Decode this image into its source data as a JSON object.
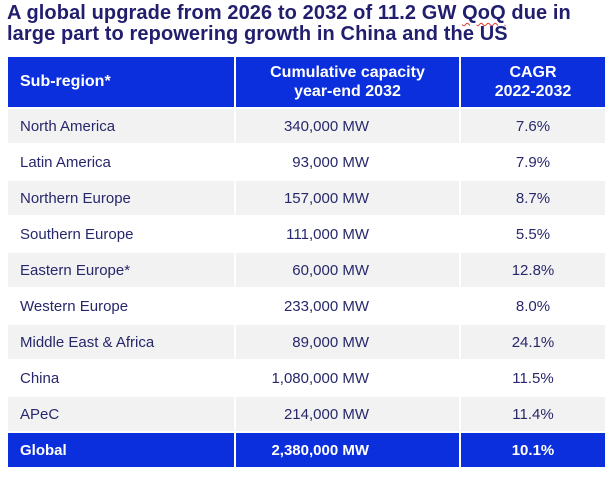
{
  "title": {
    "line1_before": "A global upgrade from 2026 to 2032 of 11.2 GW ",
    "spellcheck_word": "QoQ",
    "line1_after": " due in\n",
    "line2": "large part to repowering growth in China and the US"
  },
  "table": {
    "columns": {
      "region_label": "Sub-region*",
      "capacity_label": "Cumulative capacity\nyear-end 2032",
      "cagr_label": "CAGR\n2022-2032"
    },
    "rows": [
      {
        "region": "North America",
        "capacity": "340,000 MW",
        "cagr": "7.6%"
      },
      {
        "region": "Latin America",
        "capacity": "93,000 MW",
        "cagr": "7.9%"
      },
      {
        "region": "Northern Europe",
        "capacity": "157,000 MW",
        "cagr": "8.7%"
      },
      {
        "region": "Southern Europe",
        "capacity": "111,000 MW",
        "cagr": "5.5%"
      },
      {
        "region": "Eastern Europe*",
        "capacity": "60,000 MW",
        "cagr": "12.8%"
      },
      {
        "region": "Western Europe",
        "capacity": "233,000 MW",
        "cagr": "8.0%"
      },
      {
        "region": "Middle East & Africa",
        "capacity": "89,000 MW",
        "cagr": "24.1%"
      },
      {
        "region": "China",
        "capacity": "1,080,000 MW",
        "cagr": "11.5%"
      },
      {
        "region": "APeC",
        "capacity": "214,000 MW",
        "cagr": "11.4%"
      }
    ],
    "total_row": {
      "region": "Global",
      "capacity": "2,380,000 MW",
      "cagr": "10.1%"
    }
  },
  "colors": {
    "header_blue": "#0B2FDC",
    "row_alternate_gray": "#F2F2F2",
    "title_navy": "#221E6E",
    "body_navy": "#27276B",
    "spellcheck_red": "#E03A2F"
  }
}
